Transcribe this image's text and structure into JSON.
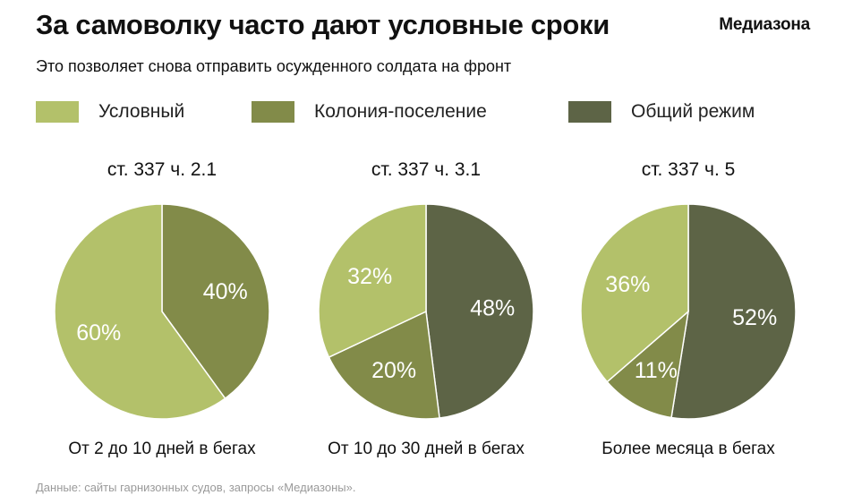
{
  "header": {
    "title": "За самоволку часто дают условные сроки",
    "brand": "Медиазона",
    "subtitle": "Это позволяет снова отправить осужденного солдата на фронт"
  },
  "legend": [
    {
      "label": "Условный",
      "color": "#b3c16a"
    },
    {
      "label": "Колония-поселение",
      "color": "#828b49"
    },
    {
      "label": "Общий режим",
      "color": "#5d6446"
    }
  ],
  "chart_data": [
    {
      "type": "pie",
      "title": "ст. 337 ч. 2.1",
      "caption": "От 2 до 10 дней в бегах",
      "slices": [
        {
          "name": "Колония-поселение",
          "value": 40,
          "label": "40%"
        },
        {
          "name": "Условный",
          "value": 60,
          "label": "60%"
        }
      ]
    },
    {
      "type": "pie",
      "title": "ст. 337 ч. 3.1",
      "caption": "От 10 до 30 дней в бегах",
      "slices": [
        {
          "name": "Общий режим",
          "value": 48,
          "label": "48%"
        },
        {
          "name": "Колония-поселение",
          "value": 20,
          "label": "20%"
        },
        {
          "name": "Условный",
          "value": 32,
          "label": "32%"
        }
      ]
    },
    {
      "type": "pie",
      "title": "ст. 337 ч. 5",
      "caption": "Более месяца в бегах",
      "slices": [
        {
          "name": "Общий режим",
          "value": 52,
          "label": "52%"
        },
        {
          "name": "Колония-поселение",
          "value": 11,
          "label": "11%"
        },
        {
          "name": "Условный",
          "value": 36,
          "label": "36%"
        }
      ]
    }
  ],
  "source": "Данные: сайты гарнизонных судов, запросы «Медиазоны»."
}
